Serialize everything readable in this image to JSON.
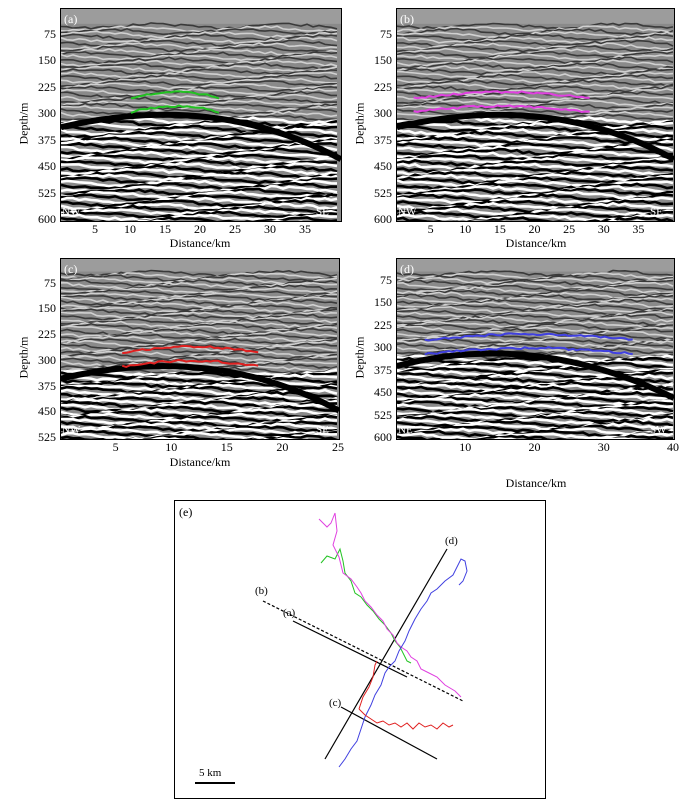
{
  "panels": [
    {
      "label": "(a)",
      "left": "NW",
      "right": "SE",
      "xticks": [
        "5",
        "10",
        "15",
        "20",
        "25",
        "30",
        "35"
      ],
      "yticks": [
        "75",
        "150",
        "225",
        "300",
        "375",
        "450",
        "525",
        "600"
      ],
      "xlabel": "Distance/km",
      "ylabel": "Depth/m",
      "horizon_color": "#22c322"
    },
    {
      "label": "(b)",
      "left": "NW",
      "right": "SE",
      "xticks": [
        "5",
        "10",
        "15",
        "20",
        "25",
        "30",
        "35"
      ],
      "yticks": [
        "75",
        "150",
        "225",
        "300",
        "375",
        "450",
        "525",
        "600"
      ],
      "xlabel": "Distance/km",
      "ylabel": "Depth/m",
      "horizon_color": "#e040e0"
    },
    {
      "label": "(c)",
      "left": "NW",
      "right": "SE",
      "xticks": [
        "5",
        "10",
        "15",
        "20",
        "25"
      ],
      "yticks": [
        "75",
        "150",
        "225",
        "300",
        "375",
        "450",
        "525"
      ],
      "xlabel": "Distance/km",
      "ylabel": "Depth/m",
      "horizon_color": "#e02020"
    },
    {
      "label": "(d)",
      "left": "NE",
      "right": "SW",
      "xticks": [
        "10",
        "20",
        "30",
        "40"
      ],
      "yticks": [
        "75",
        "150",
        "225",
        "300",
        "375",
        "450",
        "525",
        "600"
      ],
      "xlabel": "Distance/km",
      "ylabel": "Depth/m",
      "horizon_color": "#4040e0"
    }
  ],
  "map": {
    "label": "(e)",
    "line_labels": [
      "(a)",
      "(b)",
      "(c)",
      "(d)"
    ],
    "scale": "5 km"
  }
}
